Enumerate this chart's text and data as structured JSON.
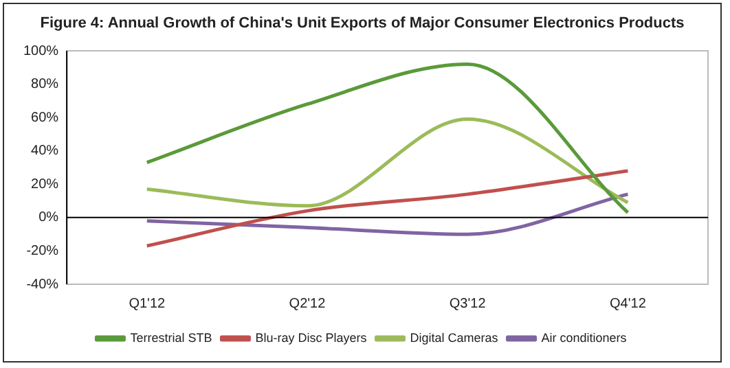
{
  "chart_data": {
    "type": "line",
    "title": "Figure 4: Annual Growth of China's Unit Exports of Major Consumer Electronics Products",
    "categories": [
      "Q1'12",
      "Q2'12",
      "Q3'12",
      "Q4'12"
    ],
    "series": [
      {
        "name": "Terrestrial STB",
        "color": "#5a9a3a",
        "values": [
          33,
          68,
          92,
          3
        ]
      },
      {
        "name": "Blu-ray Disc Players",
        "color": "#c0504d",
        "values": [
          -17,
          4,
          14,
          28
        ]
      },
      {
        "name": "Digital Cameras",
        "color": "#9bbb59",
        "values": [
          17,
          7,
          59,
          9
        ]
      },
      {
        "name": "Air conditioners",
        "color": "#8064a2",
        "values": [
          -2,
          -6,
          -10,
          14
        ]
      }
    ],
    "ylim": [
      -40,
      100
    ],
    "yticks": [
      {
        "value": -40,
        "label": "-40%"
      },
      {
        "value": -20,
        "label": "-20%"
      },
      {
        "value": 0,
        "label": "0%"
      },
      {
        "value": 20,
        "label": "20%"
      },
      {
        "value": 40,
        "label": "40%"
      },
      {
        "value": 60,
        "label": "60%"
      },
      {
        "value": 80,
        "label": "80%"
      },
      {
        "value": 100,
        "label": "100%"
      }
    ],
    "ref_lines": [
      {
        "axis": "y",
        "value": 0,
        "color": "#000000"
      }
    ],
    "grid": false,
    "legend": "bottom",
    "marker": "none",
    "line_style": "solid"
  }
}
